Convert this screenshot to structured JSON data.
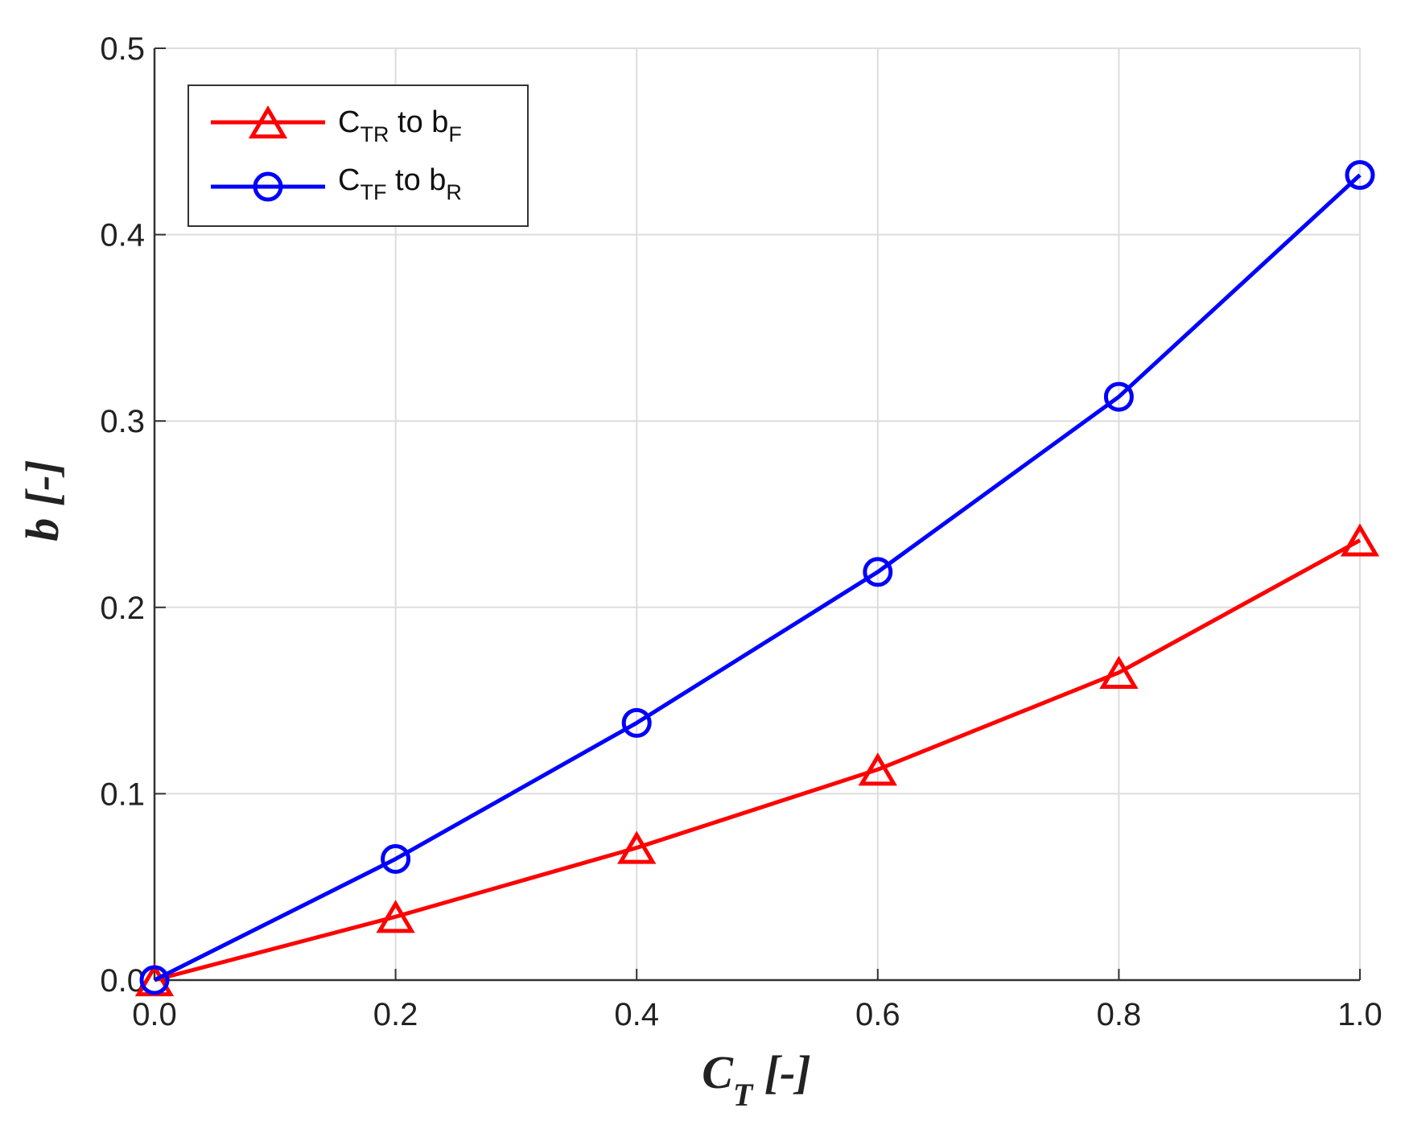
{
  "chart_data": {
    "type": "line",
    "x": [
      0.0,
      0.2,
      0.4,
      0.6,
      0.8,
      1.0
    ],
    "xlim": [
      0.0,
      1.0
    ],
    "ylim": [
      0.0,
      0.5
    ],
    "xticks": [
      "0.0",
      "0.2",
      "0.4",
      "0.6",
      "0.8",
      "1.0"
    ],
    "yticks": [
      "0.0",
      "0.1",
      "0.2",
      "0.3",
      "0.4",
      "0.5"
    ],
    "xlabel": {
      "main": "C",
      "sub": "T",
      "suffix": " [-]"
    },
    "ylabel": "b [-]",
    "grid": true,
    "legend_position": "top-left",
    "series": [
      {
        "legend": {
          "main": "C",
          "sub1": "TR",
          "mid": " to b",
          "sub2": "F"
        },
        "marker": "triangle",
        "color": "#ff0000",
        "values": [
          0.0,
          0.034,
          0.071,
          0.113,
          0.165,
          0.236
        ]
      },
      {
        "legend": {
          "main": "C",
          "sub1": "TF",
          "mid": " to b",
          "sub2": "R"
        },
        "marker": "circle",
        "color": "#0000ff",
        "values": [
          0.0,
          0.065,
          0.138,
          0.219,
          0.313,
          0.432
        ]
      }
    ]
  }
}
